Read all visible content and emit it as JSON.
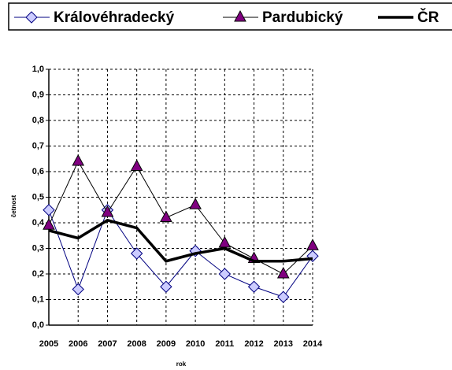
{
  "chart_data": {
    "type": "line",
    "x_label": "rok",
    "y_label": "četnost",
    "categories": [
      "2005",
      "2006",
      "2007",
      "2008",
      "2009",
      "2010",
      "2011",
      "2012",
      "2013",
      "2014"
    ],
    "series": [
      {
        "name": "Královéhradecký",
        "color": "#000080",
        "marker": "diamond",
        "values": [
          0.45,
          0.14,
          0.45,
          0.28,
          0.15,
          0.29,
          0.2,
          0.15,
          0.11,
          0.27
        ]
      },
      {
        "name": "Pardubický",
        "color": "#000000",
        "marker": "triangle",
        "values": [
          0.39,
          0.64,
          0.44,
          0.62,
          0.42,
          0.47,
          0.32,
          0.26,
          0.2,
          0.31
        ]
      },
      {
        "name": "ČR",
        "color": "#000000",
        "marker": "none",
        "values": [
          0.37,
          0.34,
          0.41,
          0.38,
          0.25,
          0.28,
          0.3,
          0.25,
          0.25,
          0.26
        ]
      }
    ],
    "ylim": [
      0,
      1
    ],
    "yticks": [
      {
        "value": 0,
        "label": "0,0"
      },
      {
        "value": 0.1,
        "label": "0,1"
      },
      {
        "value": 0.2,
        "label": "0,2"
      },
      {
        "value": 0.3,
        "label": "0,3"
      },
      {
        "value": 0.4,
        "label": "0,4"
      },
      {
        "value": 0.5,
        "label": "0,5"
      },
      {
        "value": 0.6,
        "label": "0,6"
      },
      {
        "value": 0.7,
        "label": "0,7"
      },
      {
        "value": 0.8,
        "label": "0,8"
      },
      {
        "value": 0.9,
        "label": "0,9"
      },
      {
        "value": 1,
        "label": "1,0"
      }
    ],
    "grid": true
  }
}
